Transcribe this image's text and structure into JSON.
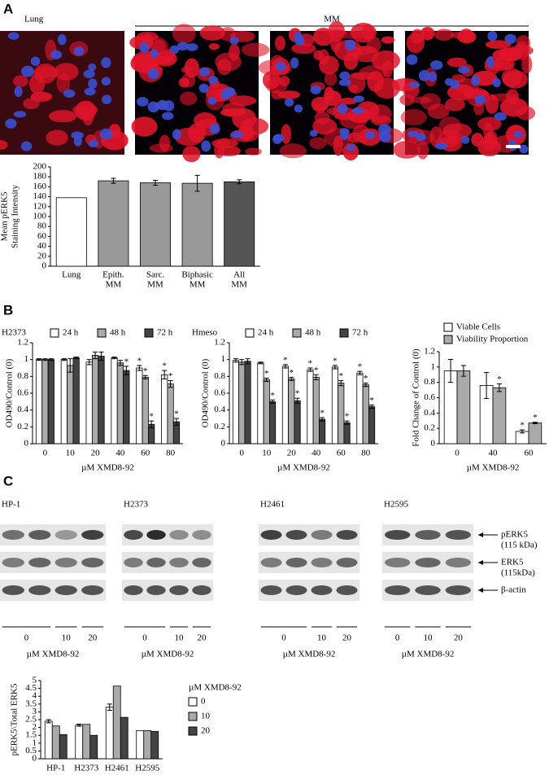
{
  "panels": [
    "A",
    "B",
    "C"
  ],
  "images": {
    "labels": [
      "Lung",
      "MM"
    ]
  },
  "blots": {
    "cells": [
      {
        "title": "HP-1",
        "lanes": [
          "0",
          "10",
          "20"
        ]
      },
      {
        "title": "H2373",
        "lanes": [
          "0",
          "10",
          "20"
        ]
      },
      {
        "title": "H2461",
        "lanes": [
          "0",
          "10",
          "20"
        ]
      },
      {
        "title": "H2595",
        "lanes": [
          "0",
          "10",
          "20"
        ]
      }
    ],
    "xlabel": "µM XMD8-92",
    "bands": [
      [
        "pERK5",
        "(115 kDa)"
      ],
      [
        "ERK5",
        "(115kDa)"
      ],
      [
        "β-actin"
      ]
    ]
  },
  "chart_data": [
    {
      "type": "bar",
      "ylabel": [
        "Mean pERK5",
        "Staining Intensity"
      ],
      "categories": [
        [
          "Lung"
        ],
        [
          "Epith.",
          "MM"
        ],
        [
          "Sarc.",
          "MM"
        ],
        [
          "Biphasic",
          "MM"
        ],
        [
          "All",
          "MM"
        ]
      ],
      "series": [
        {
          "colors": [
            "#ffffff",
            "#999999",
            "#999999",
            "#999999",
            "#555555"
          ],
          "values": [
            138,
            172,
            168,
            167,
            170
          ],
          "errors": [
            null,
            5,
            5,
            16,
            4
          ]
        }
      ],
      "ylim": [
        0,
        200
      ],
      "yticks": [
        0,
        20,
        40,
        60,
        80,
        100,
        120,
        140,
        160,
        180,
        200
      ]
    },
    {
      "type": "bar",
      "title": "H2373",
      "ylabel": "OD490/Control (0)",
      "xlabel": "µM XMD8-92",
      "categories": [
        "0",
        "10",
        "20",
        "40",
        "60",
        "80"
      ],
      "series": [
        {
          "name": "24 h",
          "color": "#ffffff",
          "values": [
            1.0,
            1.0,
            0.97,
            1.02,
            0.9,
            0.82
          ],
          "errors": [
            0.01,
            0.01,
            0.03,
            0.01,
            0.03,
            0.05
          ],
          "annotations": [
            null,
            null,
            null,
            null,
            "*",
            "*"
          ]
        },
        {
          "name": "48 h",
          "color": "#aaaaaa",
          "values": [
            1.0,
            0.93,
            1.05,
            0.96,
            0.79,
            0.71
          ],
          "errors": [
            0.01,
            0.08,
            0.04,
            0.03,
            0.02,
            0.04
          ],
          "annotations": [
            null,
            null,
            null,
            null,
            "*",
            "*"
          ]
        },
        {
          "name": "72 h",
          "color": "#444444",
          "values": [
            1.0,
            1.02,
            1.04,
            0.87,
            0.23,
            0.26
          ],
          "errors": [
            0.01,
            0.01,
            0.05,
            0.05,
            0.04,
            0.04
          ],
          "annotations": [
            null,
            null,
            null,
            "*",
            "*",
            "*"
          ]
        }
      ],
      "ylim": [
        0,
        1.2
      ],
      "yticks": [
        0,
        0.2,
        0.4,
        0.6,
        0.8,
        1,
        1.2
      ]
    },
    {
      "type": "bar",
      "title": "Hmeso",
      "ylabel": "OD490/Control (0)",
      "xlabel": "µM XMD8-92",
      "categories": [
        "0",
        "10",
        "20",
        "40",
        "60",
        "80"
      ],
      "series": [
        {
          "name": "24 h",
          "color": "#ffffff",
          "values": [
            0.99,
            0.96,
            0.92,
            0.88,
            0.91,
            0.84
          ],
          "errors": [
            0.02,
            0.01,
            0.02,
            0.02,
            0.02,
            0.02
          ],
          "annotations": [
            null,
            null,
            "*",
            "*",
            "*",
            "*"
          ]
        },
        {
          "name": "48 h",
          "color": "#aaaaaa",
          "values": [
            0.97,
            0.76,
            0.77,
            0.79,
            0.72,
            0.7
          ],
          "errors": [
            0.03,
            0.02,
            0.02,
            0.03,
            0.03,
            0.02
          ],
          "annotations": [
            null,
            "*",
            "*",
            "*",
            "*",
            "*"
          ]
        },
        {
          "name": "72 h",
          "color": "#444444",
          "values": [
            0.98,
            0.5,
            0.51,
            0.29,
            0.25,
            0.44
          ],
          "errors": [
            0.03,
            0.02,
            0.03,
            0.02,
            0.02,
            0.02
          ],
          "annotations": [
            null,
            "*",
            "*",
            "*",
            "*",
            "*"
          ]
        }
      ],
      "ylim": [
        0,
        1.2
      ],
      "yticks": [
        0,
        0.2,
        0.4,
        0.6,
        0.8,
        1,
        1.2
      ]
    },
    {
      "type": "bar",
      "ylabel": "Fold Change of Control (0)",
      "xlabel": "µM XMD8-92",
      "categories": [
        "0",
        "40",
        "60"
      ],
      "series": [
        {
          "name": "Viable Cells",
          "color": "#ffffff",
          "values": [
            0.95,
            0.76,
            0.16
          ],
          "errors": [
            0.15,
            0.17,
            0.02
          ],
          "annotations": [
            null,
            null,
            "*"
          ]
        },
        {
          "name": "Viability Proportion",
          "color": "#aaaaaa",
          "values": [
            0.95,
            0.73,
            0.27
          ],
          "errors": [
            0.07,
            0.05,
            0.01
          ],
          "annotations": [
            null,
            "*",
            "*"
          ]
        }
      ],
      "ylim": [
        0,
        1.2
      ],
      "yticks": [
        0,
        0.2,
        0.4,
        0.6,
        0.8,
        1,
        1.2
      ]
    },
    {
      "type": "bar",
      "ylabel": "pERK5\\Total ERK5",
      "legend_title": "µM XMD8-92",
      "categories": [
        "HP-1",
        "H2373",
        "H2461",
        "H2595"
      ],
      "series": [
        {
          "name": "0",
          "color": "#ffffff",
          "values": [
            2.4,
            2.15,
            3.3,
            1.8
          ],
          "errors": [
            0.1,
            0.07,
            0.2,
            null
          ]
        },
        {
          "name": "10",
          "color": "#aaaaaa",
          "values": [
            2.1,
            2.2,
            4.65,
            1.8
          ],
          "errors": [
            null,
            null,
            null,
            null
          ]
        },
        {
          "name": "20",
          "color": "#444444",
          "values": [
            1.55,
            1.5,
            2.65,
            1.75
          ],
          "errors": [
            null,
            null,
            null,
            null
          ]
        }
      ],
      "ylim": [
        0,
        5
      ],
      "yticks": [
        0,
        0.5,
        1,
        1.5,
        2,
        2.5,
        3,
        3.5,
        4,
        4.5,
        5
      ]
    }
  ]
}
